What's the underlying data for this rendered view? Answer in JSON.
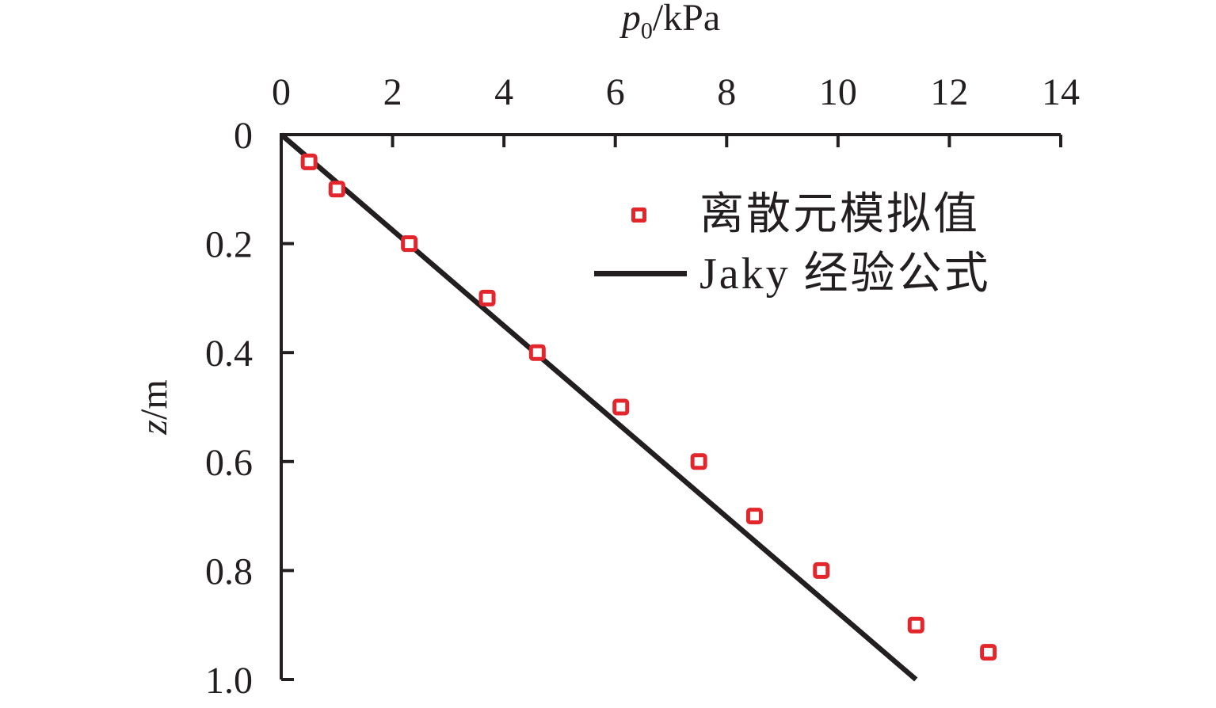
{
  "figure": {
    "background": "#ffffff",
    "text_color": "#231f20",
    "axis_color": "#231f20",
    "marker_red": "#e2262c"
  },
  "chart_data": {
    "type": "scatter",
    "title": "",
    "xlabel": {
      "symbol": "p",
      "subscript": "0",
      "unit": "/kPa"
    },
    "ylabel": {
      "symbol": "z",
      "unit": "/m"
    },
    "xlim": [
      0,
      14
    ],
    "ylim": [
      0,
      1.0
    ],
    "x_axis_position": "top",
    "y_axis_inverted": true,
    "grid": false,
    "x_ticks": [
      "0",
      "2",
      "4",
      "6",
      "8",
      "10",
      "12",
      "14"
    ],
    "y_ticks": [
      "0",
      "0.2",
      "0.4",
      "0.6",
      "0.8",
      "1.0"
    ],
    "legend_position": "inside-upper-right",
    "series": [
      {
        "name": "离散元模拟值",
        "kind": "scatter",
        "marker": "open-square",
        "color": "#e2262c",
        "points": [
          [
            0.5,
            0.05
          ],
          [
            1.0,
            0.1
          ],
          [
            2.3,
            0.2
          ],
          [
            3.7,
            0.3
          ],
          [
            4.6,
            0.4
          ],
          [
            6.1,
            0.5
          ],
          [
            7.5,
            0.6
          ],
          [
            8.5,
            0.7
          ],
          [
            9.7,
            0.8
          ],
          [
            11.4,
            0.9
          ],
          [
            12.7,
            0.95
          ]
        ]
      },
      {
        "name": "Jaky 经验公式",
        "kind": "line",
        "color": "#231f20",
        "points": [
          [
            0,
            0
          ],
          [
            11.4,
            1.0
          ]
        ]
      }
    ]
  },
  "legend": {
    "items": [
      {
        "label": "离散元模拟值",
        "swatch": "open-square-marker"
      },
      {
        "label": "Jaky 经验公式",
        "swatch": "line"
      }
    ]
  }
}
